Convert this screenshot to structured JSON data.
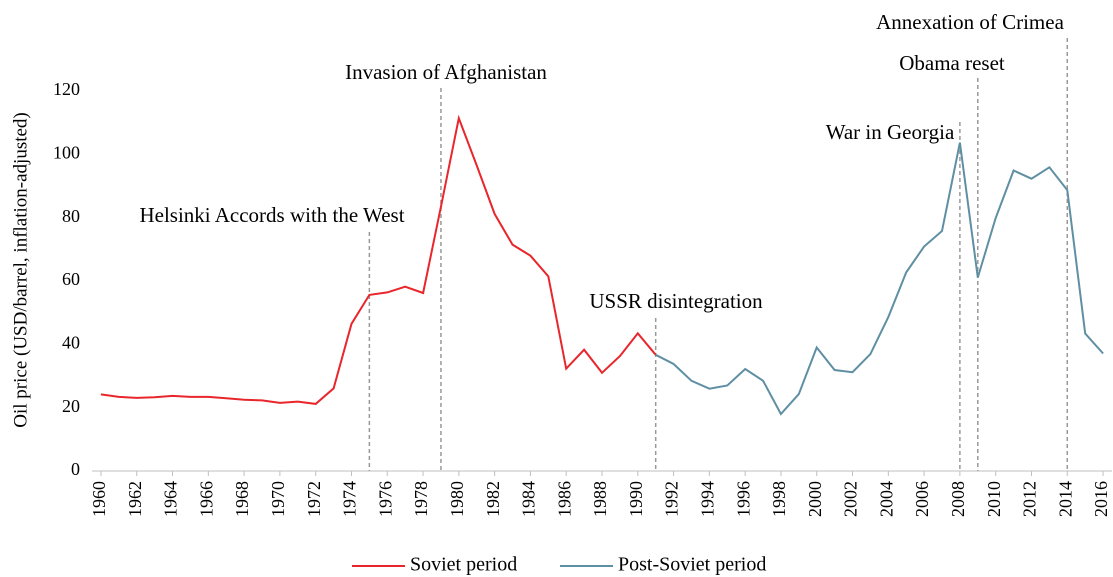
{
  "chart_data": {
    "type": "line",
    "y_label": "Oil price (USD/barrel, inflation-adjusted)",
    "ylim": [
      0,
      120
    ],
    "yticks": [
      0,
      20,
      40,
      60,
      80,
      100,
      120
    ],
    "xlim": [
      1959.5,
      2016.5
    ],
    "xticks": [
      1960,
      1962,
      1964,
      1966,
      1968,
      1970,
      1972,
      1974,
      1976,
      1978,
      1980,
      1982,
      1984,
      1986,
      1988,
      1990,
      1992,
      1994,
      1996,
      1998,
      2000,
      2002,
      2004,
      2006,
      2008,
      2010,
      2012,
      2014,
      2016
    ],
    "legend": "bottom",
    "series": [
      {
        "name": "Soviet period",
        "color": "#e8262b",
        "x": [
          1960,
          1961,
          1962,
          1963,
          1964,
          1965,
          1966,
          1967,
          1968,
          1969,
          1970,
          1971,
          1972,
          1973,
          1974,
          1975,
          1976,
          1977,
          1978,
          1979,
          1980,
          1981,
          1982,
          1983,
          1984,
          1985,
          1986,
          1987,
          1988,
          1989,
          1990,
          1991
        ],
        "values": [
          24.2,
          23.4,
          23.1,
          23.3,
          23.7,
          23.4,
          23.4,
          23.0,
          22.5,
          22.3,
          21.5,
          21.9,
          21.2,
          26.1,
          46.5,
          55.6,
          56.4,
          58.2,
          56.2,
          83.4,
          111.4,
          96.5,
          81.2,
          71.5,
          68.0,
          61.5,
          32.3,
          38.3,
          31.0,
          36.3,
          43.5,
          36.7
        ]
      },
      {
        "name": "Post-Soviet period",
        "color": "#5f8fa3",
        "x": [
          1991,
          1992,
          1993,
          1994,
          1995,
          1996,
          1997,
          1998,
          1999,
          2000,
          2001,
          2002,
          2003,
          2004,
          2005,
          2006,
          2007,
          2008,
          2009,
          2010,
          2011,
          2012,
          2013,
          2014,
          2015,
          2016
        ],
        "values": [
          36.7,
          33.8,
          28.5,
          26.0,
          27.0,
          32.2,
          28.5,
          18.0,
          24.3,
          39.0,
          31.9,
          31.2,
          36.9,
          48.6,
          62.7,
          70.9,
          75.8,
          103.7,
          61.1,
          79.9,
          94.9,
          92.3,
          95.9,
          88.7,
          43.4,
          37.1
        ]
      }
    ],
    "annotations": [
      {
        "label": "Helsinki Accords with the West",
        "x": 1975
      },
      {
        "label": "Invasion of Afghanistan",
        "x": 1979
      },
      {
        "label": "USSR disintegration",
        "x": 1991
      },
      {
        "label": "War in Georgia",
        "x": 2008
      },
      {
        "label": "Obama reset",
        "x": 2009
      },
      {
        "label": "Annexation of Crimea",
        "x": 2014
      }
    ]
  }
}
